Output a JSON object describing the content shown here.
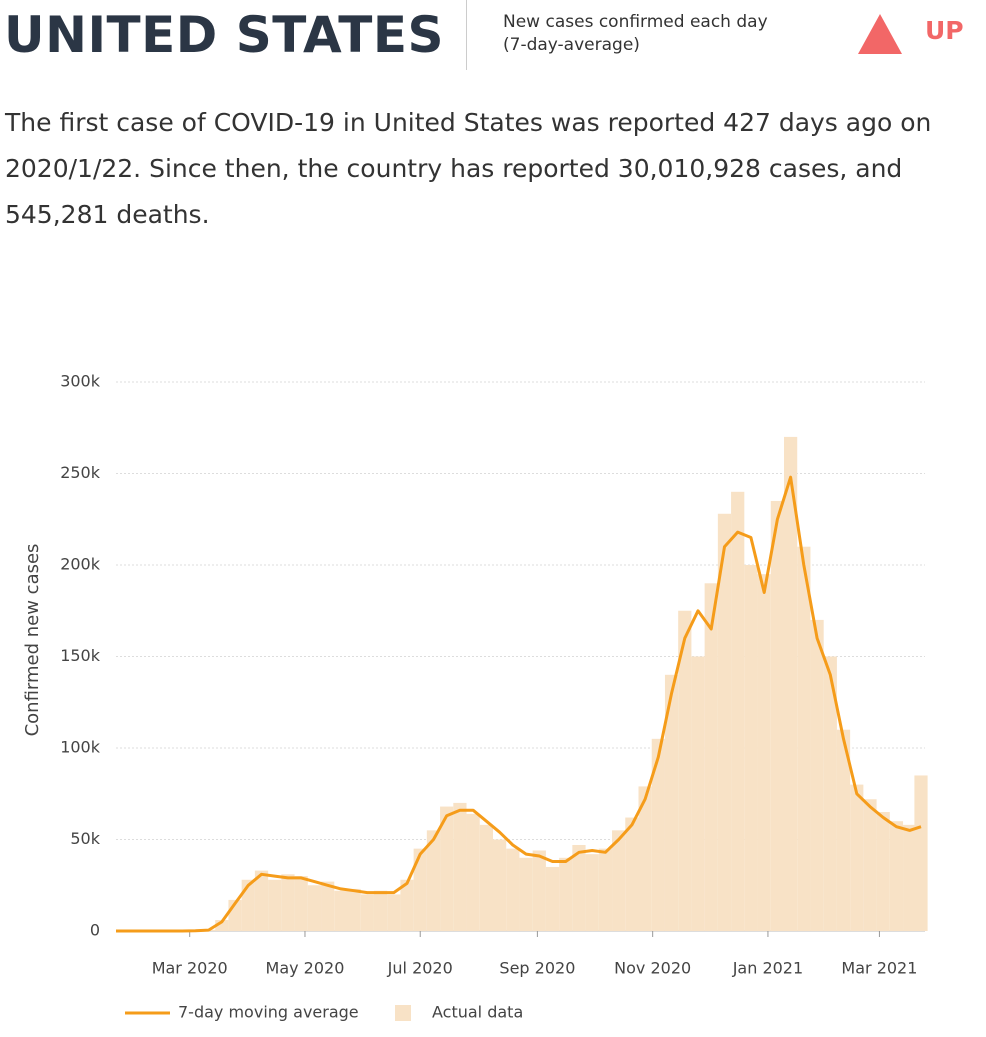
{
  "header": {
    "title": "UNITED STATES",
    "subtitle": [
      "New cases confirmed each day",
      "(7-day-average)"
    ],
    "trend": "UP"
  },
  "description": "The first case of COVID-19 in United States was reported 427 days ago on 2020/1/22. Since then, the country has reported 30,010,928 cases, and 545,281 deaths.",
  "chart_data": {
    "type": "line",
    "y_label": "Confirmed new cases",
    "x": [
      0,
      7,
      14,
      21,
      28,
      35,
      42,
      49,
      56,
      63,
      70,
      77,
      84,
      91,
      98,
      105,
      112,
      119,
      126,
      133,
      140,
      147,
      154,
      161,
      168,
      175,
      182,
      189,
      196,
      203,
      210,
      217,
      224,
      231,
      238,
      245,
      252,
      259,
      266,
      273,
      280,
      287,
      294,
      301,
      308,
      315,
      322,
      329,
      336,
      343,
      350,
      357,
      364,
      371,
      378,
      385,
      392,
      399,
      406,
      413,
      420,
      426
    ],
    "series": [
      {
        "name": "7-day moving average",
        "type": "line",
        "color": "#f59c1a",
        "values": [
          0,
          0,
          0,
          0,
          0,
          0,
          100,
          500,
          5000,
          15000,
          25000,
          31000,
          30000,
          29000,
          29000,
          27000,
          25000,
          23000,
          22000,
          21000,
          21000,
          21000,
          26000,
          42000,
          50000,
          63000,
          66000,
          66000,
          60000,
          54000,
          47000,
          42000,
          41000,
          38000,
          38000,
          43000,
          44000,
          43000,
          50000,
          58000,
          72000,
          95000,
          130000,
          160000,
          175000,
          165000,
          210000,
          218000,
          215000,
          185000,
          225000,
          248000,
          200000,
          160000,
          140000,
          105000,
          75000,
          68000,
          62000,
          57000,
          55000,
          57000
        ]
      },
      {
        "name": "Actual data",
        "type": "bar",
        "color": "#f8e2c6",
        "values": [
          0,
          0,
          0,
          0,
          0,
          0,
          200,
          700,
          6000,
          17000,
          28000,
          33000,
          28000,
          31000,
          30000,
          25000,
          27000,
          22000,
          23000,
          20000,
          22000,
          20000,
          28000,
          45000,
          55000,
          68000,
          70000,
          64000,
          58000,
          50000,
          45000,
          40000,
          44000,
          35000,
          40000,
          47000,
          42000,
          45000,
          55000,
          62000,
          79000,
          105000,
          140000,
          175000,
          150000,
          190000,
          228000,
          240000,
          200000,
          195000,
          235000,
          270000,
          210000,
          170000,
          150000,
          110000,
          80000,
          72000,
          65000,
          60000,
          58000,
          85000
        ]
      }
    ],
    "xlim": [
      0,
      426
    ],
    "xticks": [
      {
        "value": 39,
        "label": "Mar 2020"
      },
      {
        "value": 100,
        "label": "May 2020"
      },
      {
        "value": 161,
        "label": "Jul 2020"
      },
      {
        "value": 223,
        "label": "Sep 2020"
      },
      {
        "value": 284,
        "label": "Nov 2020"
      },
      {
        "value": 345,
        "label": "Jan 2021"
      },
      {
        "value": 404,
        "label": "Mar 2021"
      }
    ],
    "ylim": [
      0,
      300000
    ],
    "yticks": [
      0,
      {
        "value": 50000,
        "label": "50k"
      },
      {
        "value": 100000,
        "label": "100k"
      },
      {
        "value": 150000,
        "label": "150k"
      },
      {
        "value": 200000,
        "label": "200k"
      },
      {
        "value": 250000,
        "label": "250k"
      },
      {
        "value": 300000,
        "label": "300k"
      }
    ],
    "grid": true
  }
}
